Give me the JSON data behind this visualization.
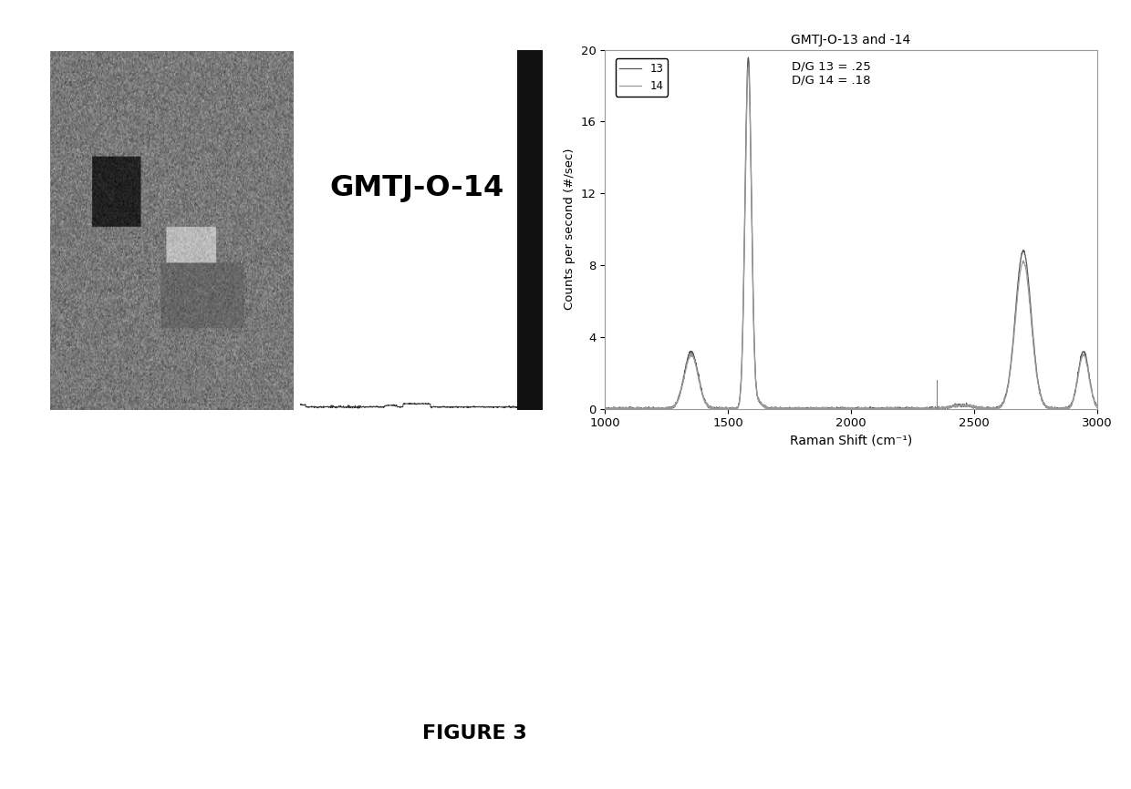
{
  "title": "FIGURE 3",
  "raman_title": "GMTJ-O-13 and -14",
  "center_label": "GMTJ-O-14",
  "ylabel": "Counts per second (#/sec)",
  "xlabel": "Raman Shift (cm⁻¹)",
  "xlim": [
    1000,
    3000
  ],
  "ylim": [
    0,
    20
  ],
  "yticks": [
    0,
    4,
    8,
    12,
    16,
    20
  ],
  "xticks": [
    1000,
    1500,
    2000,
    2500,
    3000
  ],
  "legend_label1": "13",
  "legend_label2": "14",
  "annotation": "D/G 13 = .25\nD/G 14 = .18",
  "line_color1": "#555555",
  "line_color2": "#999999",
  "bg_color": "#ffffff"
}
